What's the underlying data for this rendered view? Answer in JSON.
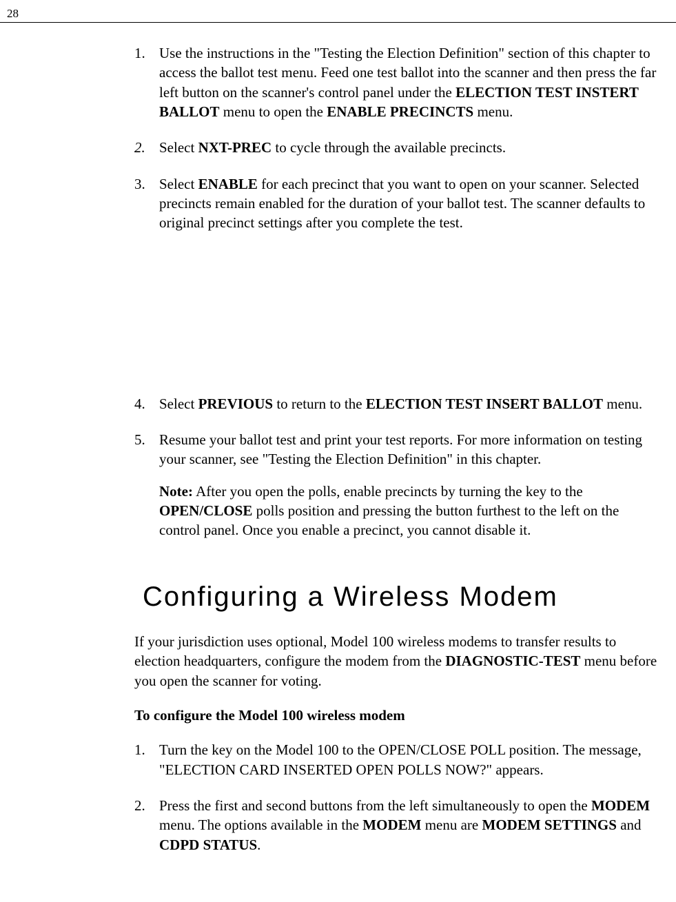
{
  "page_number": "28",
  "list1": [
    {
      "num": "1.",
      "parts": [
        {
          "t": "Use the instructions in the \"Testing the Election Definition\" section of this chapter to access the ballot test menu. Feed one test ballot into the scanner and then press the far left button on the scanner's control panel under the "
        },
        {
          "t": "ELECTION TEST INSTERT BALLOT",
          "b": true
        },
        {
          "t": " menu to open the "
        },
        {
          "t": "ENABLE PRECINCTS",
          "b": true
        },
        {
          "t": " menu."
        }
      ]
    },
    {
      "num": "2.",
      "italic_num": true,
      "parts": [
        {
          "t": "Select "
        },
        {
          "t": "NXT-PREC",
          "b": true
        },
        {
          "t": " to cycle through the available precincts."
        }
      ]
    },
    {
      "num": "3.",
      "parts": [
        {
          "t": "Select "
        },
        {
          "t": "ENABLE",
          "b": true
        },
        {
          "t": " for each precinct that you want to open on your scanner. Selected precincts remain enabled for the duration of your ballot test. The scanner defaults to original precinct settings after you complete the test."
        }
      ]
    }
  ],
  "list2": [
    {
      "num": "4.",
      "parts": [
        {
          "t": "Select "
        },
        {
          "t": "PREVIOUS",
          "b": true
        },
        {
          "t": " to return to the "
        },
        {
          "t": "ELECTION TEST INSERT BALLOT",
          "b": true
        },
        {
          "t": " menu."
        }
      ]
    },
    {
      "num": "5.",
      "parts": [
        {
          "t": "Resume your ballot test and print your test reports. For more information on testing your scanner, see \"Testing the Election Definition\" in this chapter."
        }
      ],
      "note_parts": [
        {
          "t": "Note:",
          "b": true
        },
        {
          "t": " After you open the polls, enable precincts by turning the key to the "
        },
        {
          "t": "OPEN/CLOSE",
          "b": true
        },
        {
          "t": " polls position and pressing the button furthest to the left on the control panel. Once you enable a precinct, you cannot disable it."
        }
      ]
    }
  ],
  "heading": "Configuring a Wireless Modem",
  "intro_parts": [
    {
      "t": "If your jurisdiction uses optional, Model 100 wireless modems to transfer results to election headquarters, configure the modem from the "
    },
    {
      "t": "DIAGNOSTIC-TEST",
      "b": true
    },
    {
      "t": " menu before you open the scanner for voting."
    }
  ],
  "subhead": "To configure the Model 100 wireless modem",
  "list3": [
    {
      "num": "1.",
      "parts": [
        {
          "t": "Turn the key on the Model 100 to the OPEN/CLOSE POLL position. The message, \"ELECTION CARD INSERTED OPEN POLLS NOW?\" appears."
        }
      ]
    },
    {
      "num": "2.",
      "parts": [
        {
          "t": "Press the first and second buttons from the left simultaneously to open the "
        },
        {
          "t": "MODEM",
          "b": true
        },
        {
          "t": " menu. The options available in the "
        },
        {
          "t": "MODEM",
          "b": true
        },
        {
          "t": " menu are "
        },
        {
          "t": "MODEM SETTINGS",
          "b": true
        },
        {
          "t": " and "
        },
        {
          "t": "CDPD STATUS",
          "b": true
        },
        {
          "t": "."
        }
      ]
    }
  ]
}
